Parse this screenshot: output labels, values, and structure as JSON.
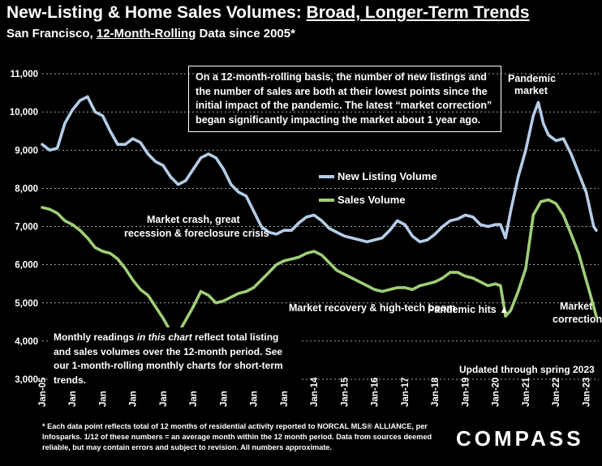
{
  "header": {
    "title_main": "New-Listing & Home Sales Volumes: ",
    "title_underlined": "Broad, Longer-Term Trends",
    "subtitle_pre": "San Francisco, ",
    "subtitle_underlined": "12-Month-Rolling",
    "subtitle_post": " Data since 2005*"
  },
  "callout": "On a 12-month-rolling basis, the number of new listings and the number of sales are both at their lowest points since the initial impact of the pandemic. The latest “market correction” began significantly impacting the market about 1 year ago.",
  "note_box": {
    "pre": "Monthly readings ",
    "italic": "in this chart",
    "post": " reflect total listing and sales volumes over the 12-month period. See our 1-month-rolling monthly charts for short-term trends."
  },
  "updated": "Updated through spring 2023",
  "footnote": "* Each data point reflects total of 12 months of residential activity reported to NORCAL MLS® ALLIANCE, per Infosparks. 1/12 of these numbers = an average month within the 12 month period. Data from sources deemed reliable, but may contain errors and subject to revision. All numbers approximate.",
  "brand": "COMPASS",
  "annotations": {
    "pandemic_market_1": "Pandemic",
    "pandemic_market_2": "market",
    "crash_1": "Market crash,  great",
    "crash_2": "recession & foreclosure crisis",
    "recovery": "Market recovery & high-tech boom",
    "pandemic_hits": "Pandemic hits ▲",
    "correction_1": "Market",
    "correction_2": "correction"
  },
  "colors": {
    "background": "#000000",
    "new_listing": "#b4cce6",
    "sales": "#9fcd78",
    "gridline": "#d9d9d9"
  },
  "chart_data": {
    "type": "line",
    "xlabel": "",
    "ylabel": "",
    "ylim": [
      3000,
      11000
    ],
    "yticks": [
      3000,
      4000,
      5000,
      6000,
      7000,
      8000,
      9000,
      10000,
      11000
    ],
    "ytick_labels": [
      "3,000",
      "4,000",
      "5,000",
      "6,000",
      "7,000",
      "8,000",
      "9,000",
      "10,000",
      "11,000"
    ],
    "xlim": [
      "2005-01",
      "2023-06"
    ],
    "xtick_labels": [
      "Jan-05",
      "Jan-06",
      "Jan-07",
      "Jan-08",
      "Jan-09",
      "Jan-10",
      "Jan-11",
      "Jan-12",
      "Jan-13",
      "Jan-14",
      "Jan-15",
      "Jan-16",
      "Jan-17",
      "Jan-18",
      "Jan-19",
      "Jan-20",
      "Jan-21",
      "Jan-22",
      "Jan-23"
    ],
    "grid": "horizontal",
    "legend": "center-right",
    "series": [
      {
        "name": "New Listing Volume",
        "color": "#b4cce6",
        "points": [
          [
            "2005-01",
            9150
          ],
          [
            "2005-04",
            9000
          ],
          [
            "2005-07",
            9050
          ],
          [
            "2005-10",
            9700
          ],
          [
            "2006-01",
            10050
          ],
          [
            "2006-04",
            10300
          ],
          [
            "2006-07",
            10400
          ],
          [
            "2006-10",
            10000
          ],
          [
            "2007-01",
            9900
          ],
          [
            "2007-04",
            9500
          ],
          [
            "2007-07",
            9150
          ],
          [
            "2007-10",
            9150
          ],
          [
            "2008-01",
            9300
          ],
          [
            "2008-04",
            9200
          ],
          [
            "2008-07",
            8900
          ],
          [
            "2008-10",
            8700
          ],
          [
            "2009-01",
            8600
          ],
          [
            "2009-04",
            8300
          ],
          [
            "2009-07",
            8100
          ],
          [
            "2009-10",
            8200
          ],
          [
            "2010-01",
            8500
          ],
          [
            "2010-04",
            8800
          ],
          [
            "2010-07",
            8900
          ],
          [
            "2010-10",
            8800
          ],
          [
            "2011-01",
            8500
          ],
          [
            "2011-04",
            8100
          ],
          [
            "2011-07",
            7900
          ],
          [
            "2011-10",
            7800
          ],
          [
            "2012-01",
            7400
          ],
          [
            "2012-04",
            7000
          ],
          [
            "2012-07",
            6850
          ],
          [
            "2012-10",
            6800
          ],
          [
            "2013-01",
            6900
          ],
          [
            "2013-04",
            6900
          ],
          [
            "2013-07",
            7100
          ],
          [
            "2013-10",
            7250
          ],
          [
            "2014-01",
            7300
          ],
          [
            "2014-04",
            7150
          ],
          [
            "2014-07",
            6950
          ],
          [
            "2014-10",
            6850
          ],
          [
            "2015-01",
            6750
          ],
          [
            "2015-04",
            6700
          ],
          [
            "2015-07",
            6650
          ],
          [
            "2015-10",
            6600
          ],
          [
            "2016-01",
            6650
          ],
          [
            "2016-04",
            6700
          ],
          [
            "2016-07",
            6900
          ],
          [
            "2016-10",
            7150
          ],
          [
            "2017-01",
            7050
          ],
          [
            "2017-04",
            6750
          ],
          [
            "2017-07",
            6600
          ],
          [
            "2017-10",
            6650
          ],
          [
            "2018-01",
            6800
          ],
          [
            "2018-04",
            7000
          ],
          [
            "2018-07",
            7150
          ],
          [
            "2018-10",
            7200
          ],
          [
            "2019-01",
            7300
          ],
          [
            "2019-04",
            7250
          ],
          [
            "2019-07",
            7050
          ],
          [
            "2019-10",
            7000
          ],
          [
            "2020-01",
            7050
          ],
          [
            "2020-03",
            7050
          ],
          [
            "2020-05",
            6700
          ],
          [
            "2020-07",
            7400
          ],
          [
            "2020-10",
            8300
          ],
          [
            "2021-01",
            9000
          ],
          [
            "2021-04",
            9900
          ],
          [
            "2021-06",
            10250
          ],
          [
            "2021-08",
            9700
          ],
          [
            "2021-10",
            9400
          ],
          [
            "2022-01",
            9250
          ],
          [
            "2022-04",
            9300
          ],
          [
            "2022-07",
            8900
          ],
          [
            "2022-10",
            8400
          ],
          [
            "2023-01",
            7900
          ],
          [
            "2023-04",
            7000
          ],
          [
            "2023-05",
            6900
          ]
        ]
      },
      {
        "name": "Sales Volume",
        "color": "#9fcd78",
        "points": [
          [
            "2005-01",
            7500
          ],
          [
            "2005-04",
            7450
          ],
          [
            "2005-07",
            7350
          ],
          [
            "2005-10",
            7150
          ],
          [
            "2006-01",
            7050
          ],
          [
            "2006-04",
            6900
          ],
          [
            "2006-07",
            6700
          ],
          [
            "2006-10",
            6450
          ],
          [
            "2007-01",
            6350
          ],
          [
            "2007-04",
            6300
          ],
          [
            "2007-07",
            6150
          ],
          [
            "2007-10",
            5900
          ],
          [
            "2008-01",
            5600
          ],
          [
            "2008-04",
            5350
          ],
          [
            "2008-07",
            5200
          ],
          [
            "2008-10",
            4900
          ],
          [
            "2009-01",
            4600
          ],
          [
            "2009-04",
            4250
          ],
          [
            "2009-07",
            4200
          ],
          [
            "2009-10",
            4550
          ],
          [
            "2010-01",
            4900
          ],
          [
            "2010-04",
            5300
          ],
          [
            "2010-07",
            5200
          ],
          [
            "2010-10",
            5000
          ],
          [
            "2011-01",
            5050
          ],
          [
            "2011-04",
            5150
          ],
          [
            "2011-07",
            5250
          ],
          [
            "2011-10",
            5300
          ],
          [
            "2012-01",
            5400
          ],
          [
            "2012-04",
            5600
          ],
          [
            "2012-07",
            5800
          ],
          [
            "2012-10",
            6000
          ],
          [
            "2013-01",
            6100
          ],
          [
            "2013-04",
            6150
          ],
          [
            "2013-07",
            6200
          ],
          [
            "2013-10",
            6300
          ],
          [
            "2014-01",
            6350
          ],
          [
            "2014-04",
            6250
          ],
          [
            "2014-07",
            6050
          ],
          [
            "2014-10",
            5850
          ],
          [
            "2015-01",
            5750
          ],
          [
            "2015-04",
            5650
          ],
          [
            "2015-07",
            5550
          ],
          [
            "2015-10",
            5450
          ],
          [
            "2016-01",
            5350
          ],
          [
            "2016-04",
            5300
          ],
          [
            "2016-07",
            5350
          ],
          [
            "2016-10",
            5400
          ],
          [
            "2017-01",
            5400
          ],
          [
            "2017-04",
            5350
          ],
          [
            "2017-07",
            5450
          ],
          [
            "2017-10",
            5500
          ],
          [
            "2018-01",
            5550
          ],
          [
            "2018-04",
            5650
          ],
          [
            "2018-07",
            5800
          ],
          [
            "2018-10",
            5800
          ],
          [
            "2019-01",
            5700
          ],
          [
            "2019-04",
            5650
          ],
          [
            "2019-07",
            5550
          ],
          [
            "2019-10",
            5450
          ],
          [
            "2020-01",
            5500
          ],
          [
            "2020-03",
            5450
          ],
          [
            "2020-05",
            4650
          ],
          [
            "2020-07",
            4800
          ],
          [
            "2020-10",
            5300
          ],
          [
            "2021-01",
            5900
          ],
          [
            "2021-04",
            7300
          ],
          [
            "2021-07",
            7650
          ],
          [
            "2021-10",
            7700
          ],
          [
            "2022-01",
            7600
          ],
          [
            "2022-04",
            7300
          ],
          [
            "2022-07",
            6800
          ],
          [
            "2022-10",
            6300
          ],
          [
            "2023-01",
            5600
          ],
          [
            "2023-04",
            4900
          ],
          [
            "2023-05",
            4650
          ]
        ]
      }
    ]
  }
}
